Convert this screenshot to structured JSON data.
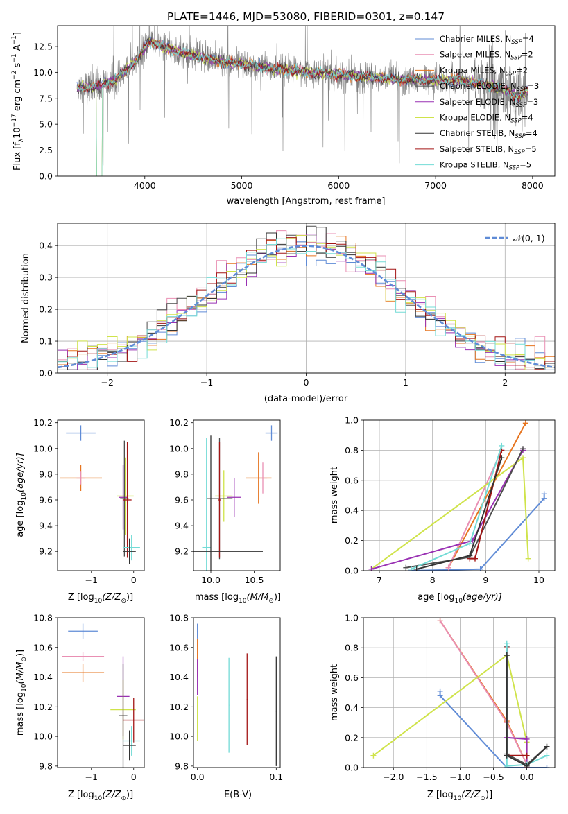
{
  "colors": {
    "Chabrier MILES": "#5f8bd6",
    "Salpeter MILES": "#e98fb3",
    "Kroupa MILES": "#e6741f",
    "Chabrier ELODIE": "#4d4d4d",
    "Salpeter ELODIE": "#9930b3",
    "Kroupa ELODIE": "#cfe34a",
    "Chabrier STELIB": "#333333",
    "Salpeter STELIB": "#a31515",
    "Kroupa STELIB": "#73dbd6",
    "data": "#7f7f7f",
    "gaussian": "#5f8bd6"
  },
  "chart_data": [
    {
      "id": "spectrum",
      "type": "line",
      "title": "PLATE=1446, MJD=53080, FIBERID=0301, z=0.147",
      "xlabel": "wavelength [Angstrom, rest frame]",
      "ylabel_parts": [
        "Flux [f",
        "λ",
        "10",
        "−17",
        " erg cm",
        "−2",
        " s",
        "−1",
        " A",
        "−1",
        "]"
      ],
      "xlim": [
        3100,
        8230
      ],
      "ylim": [
        0,
        14.5
      ],
      "xticks": [
        "4000",
        "5000",
        "6000",
        "7000",
        "8000"
      ],
      "xtick_values": [
        4000,
        5000,
        6000,
        7000,
        8000
      ],
      "yticks": [
        "0.0",
        "2.5",
        "5.0",
        "7.5",
        "10.0",
        "12.5"
      ],
      "ytick_values": [
        0,
        2.5,
        5,
        7.5,
        10,
        12.5
      ],
      "legend": [
        {
          "name": "Chabrier MILES",
          "suffix": "=4"
        },
        {
          "name": "Salpeter MILES",
          "suffix": "=2"
        },
        {
          "name": "Kroupa MILES",
          "suffix": "=2"
        },
        {
          "name": "Chabrier ELODIE",
          "suffix": "=3"
        },
        {
          "name": "Salpeter ELODIE",
          "suffix": "=3"
        },
        {
          "name": "Kroupa ELODIE",
          "suffix": "=4"
        },
        {
          "name": "Chabrier STELIB",
          "suffix": "=4"
        },
        {
          "name": "Salpeter STELIB",
          "suffix": "=5"
        },
        {
          "name": "Kroupa STELIB",
          "suffix": "=5"
        }
      ],
      "model_continuum": {
        "x": [
          3300,
          3500,
          3700,
          3900,
          4050,
          4200,
          4400,
          4600,
          4800,
          5000,
          5200,
          5400,
          5600,
          5800,
          6000,
          6200,
          6400,
          6600,
          6800,
          7000,
          7200,
          7400,
          7600,
          7750,
          7850,
          7950
        ],
        "y": [
          8.5,
          8.6,
          9.3,
          11.0,
          13.0,
          12.4,
          11.8,
          11.4,
          11.0,
          10.8,
          10.5,
          10.3,
          10.1,
          9.9,
          9.8,
          9.6,
          9.5,
          9.3,
          9.3,
          9.2,
          9.3,
          9.0,
          8.6,
          8.2,
          7.6,
          8.3
        ]
      }
    },
    {
      "id": "residuals",
      "type": "line",
      "xlabel": "(data-model)/error",
      "ylabel": "Normed distribution",
      "xlim": [
        -2.5,
        2.5
      ],
      "ylim": [
        0,
        0.47
      ],
      "xticks": [
        "−2",
        "−1",
        "0",
        "1",
        "2"
      ],
      "xtick_values": [
        -2,
        -1,
        0,
        1,
        2
      ],
      "yticks": [
        "0.0",
        "0.1",
        "0.2",
        "0.3",
        "0.4"
      ],
      "ytick_values": [
        0,
        0.1,
        0.2,
        0.3,
        0.4
      ],
      "legend_label": "𝒩(0, 1)",
      "bin_width": 0.1
    },
    {
      "id": "age-vs-z",
      "type": "scatter",
      "xlabel_parts": [
        "Z [log",
        "10",
        "(Z/Z",
        "⊙",
        ")]"
      ],
      "ylabel_parts": [
        "age  [log",
        "10",
        "(age/yr)]"
      ],
      "xlim": [
        -1.8,
        0.25
      ],
      "ylim": [
        9.05,
        10.22
      ],
      "xticks": [
        "−1",
        "0"
      ],
      "xtick_values": [
        -1,
        0
      ],
      "yticks": [
        "9.2",
        "9.4",
        "9.6",
        "9.8",
        "10.0",
        "10.2"
      ],
      "ytick_values": [
        9.2,
        9.4,
        9.6,
        9.8,
        10.0,
        10.2
      ],
      "points": [
        {
          "model": "Chabrier MILES",
          "x": -1.25,
          "y": 10.12,
          "xerr": 0.35,
          "yerr": 0.06
        },
        {
          "model": "Kroupa MILES",
          "x": -1.25,
          "y": 9.77,
          "xerr": 0.5,
          "yerr": 0.1
        },
        {
          "model": "Salpeter MILES",
          "x": -1.25,
          "y": 9.77,
          "xerr": 0.1,
          "yerr": 0.05
        },
        {
          "model": "Kroupa ELODIE",
          "x": -0.2,
          "y": 9.63,
          "xerr": 0.2,
          "yerr": 0.3
        },
        {
          "model": "Salpeter ELODIE",
          "x": -0.25,
          "y": 9.62,
          "xerr": 0.1,
          "yerr": 0.25
        },
        {
          "model": "Chabrier ELODIE",
          "x": -0.22,
          "y": 9.61,
          "xerr": 0.1,
          "yerr": 0.45
        },
        {
          "model": "Salpeter STELIB",
          "x": -0.15,
          "y": 9.6,
          "xerr": 0.1,
          "yerr": 0.45
        },
        {
          "model": "Kroupa STELIB",
          "x": -0.05,
          "y": 9.23,
          "xerr": 0.2,
          "yerr": 0.1
        },
        {
          "model": "Chabrier STELIB",
          "x": -0.1,
          "y": 9.2,
          "xerr": 0.15,
          "yerr": 0.1
        }
      ]
    },
    {
      "id": "age-vs-mass",
      "type": "scatter",
      "xlabel_parts": [
        "mass [log",
        "10",
        "(M/M",
        "⊙",
        ")]"
      ],
      "xlim": [
        9.8,
        10.8
      ],
      "ylim": [
        9.05,
        10.22
      ],
      "xticks": [
        "10.0",
        "10.5"
      ],
      "xtick_values": [
        10.0,
        10.5
      ],
      "yticks": [
        "9.2",
        "9.4",
        "9.6",
        "9.8",
        "10.0",
        "10.2"
      ],
      "ytick_values": [
        9.2,
        9.4,
        9.6,
        9.8,
        10.0,
        10.2
      ],
      "points": [
        {
          "model": "Chabrier MILES",
          "x": 10.7,
          "y": 10.12,
          "xerr": 0.07,
          "yerr": 0.06
        },
        {
          "model": "Kroupa MILES",
          "x": 10.55,
          "y": 9.77,
          "xerr": 0.15,
          "yerr": 0.2
        },
        {
          "model": "Salpeter MILES",
          "x": 10.6,
          "y": 9.77,
          "xerr": 0.05,
          "yerr": 0.12
        },
        {
          "model": "Kroupa ELODIE",
          "x": 10.15,
          "y": 9.63,
          "xerr": 0.1,
          "yerr": 0.2
        },
        {
          "model": "Salpeter ELODIE",
          "x": 10.27,
          "y": 9.62,
          "xerr": 0.08,
          "yerr": 0.15
        },
        {
          "model": "Chabrier ELODIE",
          "x": 10.1,
          "y": 9.61,
          "xerr": 0.15,
          "yerr": 0.47
        },
        {
          "model": "Salpeter STELIB",
          "x": 10.1,
          "y": 9.6,
          "xerr": 0.02,
          "yerr": 0.45
        },
        {
          "model": "Kroupa STELIB",
          "x": 9.95,
          "y": 9.23,
          "xerr": 0.05,
          "yerr": 0.85
        },
        {
          "model": "Chabrier STELIB",
          "x": 10.0,
          "y": 9.2,
          "xerr": 0.6,
          "yerr": 0.9
        }
      ]
    },
    {
      "id": "weight-vs-age",
      "type": "line",
      "xlabel_parts": [
        "age  [log",
        "10",
        "(age/yr)]"
      ],
      "ylabel": "mass weight",
      "xlim": [
        6.7,
        10.3
      ],
      "ylim": [
        0,
        1
      ],
      "xticks": [
        "7",
        "8",
        "9",
        "10"
      ],
      "xtick_values": [
        7,
        8,
        9,
        10
      ],
      "yticks": [
        "0.0",
        "0.2",
        "0.4",
        "0.6",
        "0.8",
        "1.0"
      ],
      "ytick_values": [
        0,
        0.2,
        0.4,
        0.6,
        0.8,
        1.0
      ],
      "series": [
        {
          "model": "Chabrier MILES",
          "x": [
            7.6,
            8.9,
            10.1,
            10.1
          ],
          "y": [
            0.0,
            0.01,
            0.48,
            0.51
          ]
        },
        {
          "model": "Kroupa MILES",
          "x": [
            8.3,
            9.75
          ],
          "y": [
            0.02,
            0.98
          ]
        },
        {
          "model": "Salpeter MILES",
          "x": [
            8.3,
            9.3
          ],
          "y": [
            0.02,
            0.8
          ]
        },
        {
          "model": "Kroupa ELODIE",
          "x": [
            6.85,
            9.7,
            9.8
          ],
          "y": [
            0.01,
            0.75,
            0.08
          ]
        },
        {
          "model": "Salpeter ELODIE",
          "x": [
            6.85,
            8.75,
            9.7
          ],
          "y": [
            0.01,
            0.2,
            0.8
          ]
        },
        {
          "model": "Chabrier ELODIE",
          "x": [
            7.5,
            8.7,
            9.7
          ],
          "y": [
            0.02,
            0.09,
            0.81
          ]
        },
        {
          "model": "Salpeter STELIB",
          "x": [
            8.7,
            8.8,
            9.3
          ],
          "y": [
            0.08,
            0.08,
            0.8
          ]
        },
        {
          "model": "Kroupa STELIB",
          "x": [
            7.6,
            8.7,
            9.3
          ],
          "y": [
            0.01,
            0.18,
            0.83
          ]
        },
        {
          "model": "Chabrier STELIB",
          "x": [
            7.7,
            8.7,
            9.3
          ],
          "y": [
            0.01,
            0.1,
            0.75
          ]
        }
      ]
    },
    {
      "id": "mass-vs-z",
      "type": "scatter",
      "xlabel_parts": [
        "Z [log",
        "10",
        "(Z/Z",
        "⊙",
        ")]"
      ],
      "ylabel_parts": [
        "mass [log",
        "10",
        "(M/M",
        "⊙",
        ")]"
      ],
      "xlim": [
        -1.8,
        0.25
      ],
      "ylim": [
        9.79,
        10.8
      ],
      "xticks": [
        "−1",
        "0"
      ],
      "xtick_values": [
        -1,
        0
      ],
      "yticks": [
        "9.8",
        "10.0",
        "10.2",
        "10.4",
        "10.6",
        "10.8"
      ],
      "ytick_values": [
        9.8,
        10.0,
        10.2,
        10.4,
        10.6,
        10.8
      ],
      "points": [
        {
          "model": "Chabrier MILES",
          "x": -1.2,
          "y": 10.71,
          "xerr": 0.35,
          "yerr": 0.05
        },
        {
          "model": "Salpeter MILES",
          "x": -1.2,
          "y": 10.54,
          "xerr": 0.5,
          "yerr": 0.03
        },
        {
          "model": "Kroupa MILES",
          "x": -1.2,
          "y": 10.43,
          "xerr": 0.5,
          "yerr": 0.06
        },
        {
          "model": "Salpeter ELODIE",
          "x": -0.25,
          "y": 10.27,
          "xerr": 0.15,
          "yerr": 0.27
        },
        {
          "model": "Kroupa ELODIE",
          "x": -0.25,
          "y": 10.18,
          "xerr": 0.3,
          "yerr": 0.2
        },
        {
          "model": "Chabrier ELODIE",
          "x": -0.25,
          "y": 10.14,
          "xerr": 0.1,
          "yerr": 0.35
        },
        {
          "model": "Salpeter STELIB",
          "x": 0.0,
          "y": 10.11,
          "xerr": 0.25,
          "yerr": 0.15
        },
        {
          "model": "Kroupa STELIB",
          "x": -0.05,
          "y": 9.97,
          "xerr": 0.2,
          "yerr": 0.1
        },
        {
          "model": "Chabrier STELIB",
          "x": -0.1,
          "y": 9.94,
          "xerr": 0.15,
          "yerr": 0.1
        }
      ]
    },
    {
      "id": "mass-vs-ebv",
      "type": "scatter",
      "xlabel": "E(B-V)",
      "xlim": [
        -0.005,
        0.105
      ],
      "ylim": [
        9.79,
        10.8
      ],
      "xticks": [
        "0.0",
        "0.1"
      ],
      "xtick_values": [
        0.0,
        0.1
      ],
      "yticks": [
        "9.8",
        "10.0",
        "10.2",
        "10.4",
        "10.6",
        "10.8"
      ],
      "ytick_values": [
        9.8,
        10.0,
        10.2,
        10.4,
        10.6,
        10.8
      ],
      "points": [
        {
          "model": "Chabrier MILES",
          "x": 0.0,
          "y": 10.71,
          "xerr": 0.0005,
          "yerr": 0.05
        },
        {
          "model": "Kroupa MILES",
          "x": 0.0,
          "y": 10.53,
          "xerr": 0.0005,
          "yerr": 0.13
        },
        {
          "model": "Salpeter ELODIE",
          "x": 0.0,
          "y": 10.4,
          "xerr": 0.0005,
          "yerr": 0.12
        },
        {
          "model": "Kroupa ELODIE",
          "x": 0.0,
          "y": 10.12,
          "xerr": 0.0005,
          "yerr": 0.15
        },
        {
          "model": "Kroupa STELIB",
          "x": 0.04,
          "y": 10.21,
          "xerr": 0.0005,
          "yerr": 0.32
        },
        {
          "model": "Salpeter STELIB",
          "x": 0.063,
          "y": 10.25,
          "xerr": 0.0005,
          "yerr": 0.31
        },
        {
          "model": "Chabrier STELIB",
          "x": 0.1,
          "y": 10.17,
          "xerr": 0.0005,
          "yerr": 0.37
        }
      ]
    },
    {
      "id": "weight-vs-z",
      "type": "line",
      "xlabel_parts": [
        "Z [log",
        "10",
        "(Z/Z",
        "⊙",
        ")]"
      ],
      "ylabel": "mass weight",
      "xlim": [
        -2.45,
        0.42
      ],
      "ylim": [
        0,
        1
      ],
      "xticks": [
        "−2.0",
        "−1.5",
        "−1.0",
        "−0.5",
        "0.0"
      ],
      "xtick_values": [
        -2.0,
        -1.5,
        -1.0,
        -0.5,
        0.0
      ],
      "yticks": [
        "0.0",
        "0.2",
        "0.4",
        "0.6",
        "0.8",
        "1.0"
      ],
      "ytick_values": [
        0,
        0.2,
        0.4,
        0.6,
        0.8,
        1.0
      ],
      "series": [
        {
          "model": "Chabrier MILES",
          "x": [
            -1.3,
            -1.3,
            -0.3,
            0.3
          ],
          "y": [
            0.51,
            0.48,
            0.0,
            0.0
          ]
        },
        {
          "model": "Kroupa MILES",
          "x": [
            -1.3,
            -0.3,
            0.0,
            0.0
          ],
          "y": [
            0.98,
            0.31,
            0.02,
            0.0
          ]
        },
        {
          "model": "Salpeter MILES",
          "x": [
            -1.3,
            -0.3,
            0.0
          ],
          "y": [
            0.98,
            0.3,
            0.02
          ]
        },
        {
          "model": "Kroupa ELODIE",
          "x": [
            -2.3,
            -0.3,
            0.0,
            0.0
          ],
          "y": [
            0.08,
            0.75,
            0.17,
            0.0
          ]
        },
        {
          "model": "Salpeter ELODIE",
          "x": [
            -0.3,
            -0.3,
            0.0,
            0.0
          ],
          "y": [
            0.8,
            0.2,
            0.19,
            0.0
          ]
        },
        {
          "model": "Chabrier ELODIE",
          "x": [
            -0.3,
            -0.3,
            0.0,
            0.3
          ],
          "y": [
            0.81,
            0.09,
            0.02,
            0.14
          ]
        },
        {
          "model": "Salpeter STELIB",
          "x": [
            -0.3,
            -0.3,
            0.0
          ],
          "y": [
            0.8,
            0.08,
            0.08
          ]
        },
        {
          "model": "Kroupa STELIB",
          "x": [
            -0.3,
            -0.3,
            0.0,
            0.3
          ],
          "y": [
            0.83,
            0.01,
            0.02,
            0.08
          ]
        },
        {
          "model": "Chabrier STELIB",
          "x": [
            -0.3,
            -0.3,
            0.0,
            0.3
          ],
          "y": [
            0.75,
            0.08,
            0.01,
            0.14
          ]
        }
      ]
    }
  ]
}
